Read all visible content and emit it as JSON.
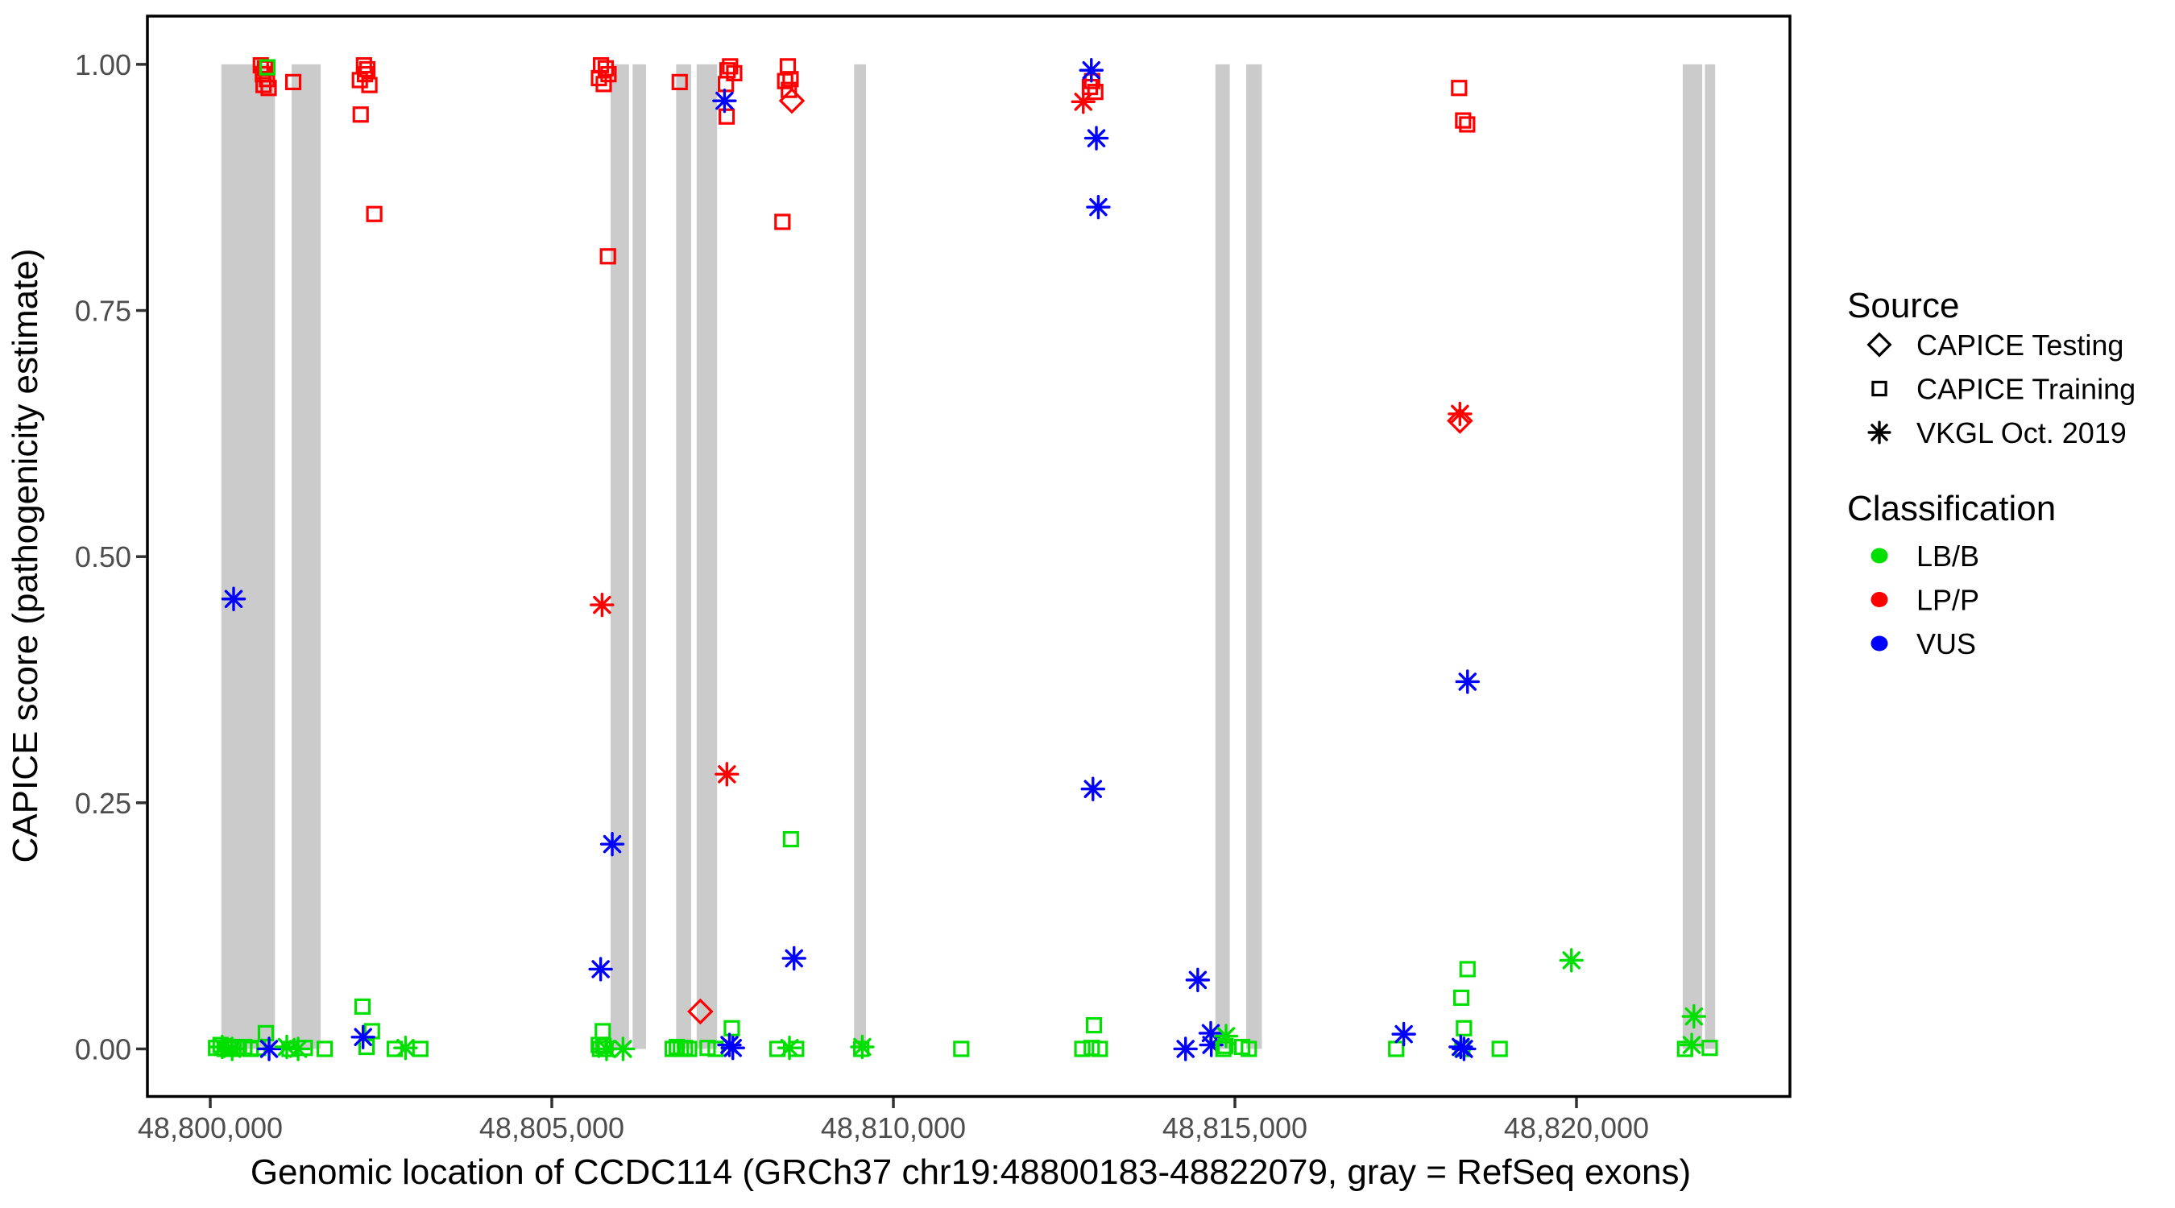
{
  "chart_data": {
    "type": "scatter",
    "xlabel": "Genomic location of CCDC114 (GRCh37 chr19:48800183-48822079, gray = RefSeq exons)",
    "ylabel": "CAPICE score (pathogenicity estimate)",
    "xlim": [
      48799080,
      48823125
    ],
    "ylim": [
      -0.0483,
      1.049
    ],
    "grid": "off",
    "x_ticks": [
      {
        "value": 48800000,
        "label": "48,800,000"
      },
      {
        "value": 48805000,
        "label": "48,805,000"
      },
      {
        "value": 48810000,
        "label": "48,810,000"
      },
      {
        "value": 48815000,
        "label": "48,815,000"
      },
      {
        "value": 48820000,
        "label": "48,820,000"
      }
    ],
    "y_ticks": [
      {
        "value": 0,
        "label": "0.00"
      },
      {
        "value": 0.25,
        "label": "0.25"
      },
      {
        "value": 0.5,
        "label": "0.50"
      },
      {
        "value": 0.75,
        "label": "0.75"
      },
      {
        "value": 1,
        "label": "1.00"
      }
    ],
    "exon_color": "#CBCBCB",
    "exons": [
      [
        48800162,
        48800947
      ],
      [
        48801191,
        48801616
      ],
      [
        48805860,
        48806130
      ],
      [
        48806183,
        48806380
      ],
      [
        48806820,
        48807040
      ],
      [
        48807120,
        48807420
      ],
      [
        48809425,
        48809600
      ],
      [
        48814715,
        48814925
      ],
      [
        48815165,
        48815395
      ],
      [
        48821555,
        48821842
      ],
      [
        48821880,
        48822030
      ]
    ],
    "points_format": [
      "genomic_position",
      "capice_score",
      "source",
      "classification"
    ],
    "points": [
      [
        48800740,
        0.999,
        "training",
        "LP/P"
      ],
      [
        48800800,
        0.996,
        "training",
        "LP/P"
      ],
      [
        48800770,
        0.99,
        "training",
        "LP/P"
      ],
      [
        48800830,
        0.985,
        "training",
        "LP/P"
      ],
      [
        48800780,
        0.979,
        "training",
        "LP/P"
      ],
      [
        48800855,
        0.976,
        "training",
        "LP/P"
      ],
      [
        48800837,
        0.997,
        "training",
        "LB/B"
      ],
      [
        48801215,
        0.982,
        "training",
        "LP/P"
      ],
      [
        48800342,
        0.457,
        "vkgl",
        "VUS"
      ],
      [
        48800085,
        0.001,
        "training",
        "LB/B"
      ],
      [
        48800150,
        0.004,
        "training",
        "LB/B"
      ],
      [
        48800210,
        0.0,
        "training",
        "LB/B"
      ],
      [
        48800270,
        0.002,
        "training",
        "LB/B"
      ],
      [
        48800340,
        0.0,
        "training",
        "LB/B"
      ],
      [
        48800420,
        0.001,
        "training",
        "LB/B"
      ],
      [
        48800175,
        0.002,
        "vkgl",
        "LB/B"
      ],
      [
        48800320,
        0.0,
        "vkgl",
        "LB/B"
      ],
      [
        48800500,
        0.002,
        "training",
        "LB/B"
      ],
      [
        48800590,
        0.0,
        "training",
        "LB/B"
      ],
      [
        48800700,
        0.001,
        "training",
        "LB/B"
      ],
      [
        48800813,
        0.016,
        "training",
        "LB/B"
      ],
      [
        48800861,
        0.0,
        "vkgl",
        "VUS"
      ],
      [
        48801160,
        0.0,
        "training",
        "LB/B"
      ],
      [
        48801120,
        0.002,
        "vkgl",
        "LB/B"
      ],
      [
        48801286,
        0.0,
        "vkgl",
        "LB/B"
      ],
      [
        48801384,
        0.001,
        "training",
        "LB/B"
      ],
      [
        48801675,
        0.0,
        "training",
        "LB/B"
      ],
      [
        48802229,
        0.043,
        "training",
        "LB/B"
      ],
      [
        48802288,
        0.002,
        "training",
        "LB/B"
      ],
      [
        48802367,
        0.018,
        "training",
        "LB/B"
      ],
      [
        48802237,
        0.012,
        "vkgl",
        "VUS"
      ],
      [
        48802701,
        0.0,
        "training",
        "LB/B"
      ],
      [
        48802858,
        0.001,
        "vkgl",
        "LB/B"
      ],
      [
        48803075,
        0.0,
        "training",
        "LB/B"
      ],
      [
        48802250,
        0.999,
        "training",
        "LP/P"
      ],
      [
        48802300,
        0.995,
        "training",
        "LP/P"
      ],
      [
        48802265,
        0.99,
        "training",
        "LP/P"
      ],
      [
        48802190,
        0.984,
        "training",
        "LP/P"
      ],
      [
        48802330,
        0.979,
        "training",
        "LP/P"
      ],
      [
        48802202,
        0.949,
        "training",
        "LP/P"
      ],
      [
        48802401,
        0.848,
        "training",
        "LP/P"
      ],
      [
        48805720,
        0.999,
        "training",
        "LP/P"
      ],
      [
        48805790,
        0.996,
        "training",
        "LP/P"
      ],
      [
        48805830,
        0.99,
        "training",
        "LP/P"
      ],
      [
        48805690,
        0.986,
        "training",
        "LP/P"
      ],
      [
        48805760,
        0.98,
        "training",
        "LP/P"
      ],
      [
        48805822,
        0.805,
        "training",
        "LP/P"
      ],
      [
        48805735,
        0.451,
        "vkgl",
        "LP/P"
      ],
      [
        48805885,
        0.208,
        "vkgl",
        "VUS"
      ],
      [
        48805715,
        0.081,
        "vkgl",
        "VUS"
      ],
      [
        48805746,
        0.018,
        "training",
        "LB/B"
      ],
      [
        48805687,
        0.004,
        "training",
        "LB/B"
      ],
      [
        48805786,
        0.0,
        "training",
        "LB/B"
      ],
      [
        48805705,
        0.0,
        "training",
        "LB/B"
      ],
      [
        48805756,
        0.003,
        "training",
        "LB/B"
      ],
      [
        48805801,
        0.0,
        "vkgl",
        "LB/B"
      ],
      [
        48806042,
        0.0,
        "vkgl",
        "LB/B"
      ],
      [
        48806872,
        0.982,
        "training",
        "LP/P"
      ],
      [
        48807572,
        0.994,
        "training",
        "LP/P"
      ],
      [
        48807670,
        0.991,
        "training",
        "LP/P"
      ],
      [
        48807610,
        0.998,
        "training",
        "LP/P"
      ],
      [
        48807548,
        0.98,
        "training",
        "LP/P"
      ],
      [
        48807560,
        0.947,
        "training",
        "LP/P"
      ],
      [
        48807528,
        0.963,
        "vkgl",
        "VUS"
      ],
      [
        48807174,
        0.038,
        "testing",
        "LP/P"
      ],
      [
        48807563,
        0.279,
        "vkgl",
        "LP/P"
      ],
      [
        48806770,
        0.0,
        "training",
        "LB/B"
      ],
      [
        48806830,
        0.002,
        "training",
        "LB/B"
      ],
      [
        48806890,
        0.0,
        "training",
        "LB/B"
      ],
      [
        48806950,
        0.001,
        "training",
        "LB/B"
      ],
      [
        48807010,
        0.0,
        "training",
        "LB/B"
      ],
      [
        48807281,
        0.001,
        "training",
        "LB/B"
      ],
      [
        48807398,
        0.0,
        "training",
        "LB/B"
      ],
      [
        48807635,
        0.021,
        "training",
        "LB/B"
      ],
      [
        48807600,
        0.004,
        "vkgl",
        "VUS"
      ],
      [
        48807650,
        0.001,
        "vkgl",
        "VUS"
      ],
      [
        48808455,
        0.998,
        "training",
        "LP/P"
      ],
      [
        48808495,
        0.985,
        "training",
        "LP/P"
      ],
      [
        48808416,
        0.983,
        "training",
        "LP/P"
      ],
      [
        48808470,
        0.974,
        "training",
        "LP/P"
      ],
      [
        48808514,
        0.963,
        "testing",
        "LP/P"
      ],
      [
        48808376,
        0.84,
        "training",
        "LP/P"
      ],
      [
        48808500,
        0.213,
        "training",
        "LB/B"
      ],
      [
        48808546,
        0.092,
        "vkgl",
        "VUS"
      ],
      [
        48808303,
        0.0,
        "training",
        "LB/B"
      ],
      [
        48808479,
        0.001,
        "vkgl",
        "LB/B"
      ],
      [
        48808577,
        0.0,
        "training",
        "LB/B"
      ],
      [
        48809530,
        0.0,
        "training",
        "LB/B"
      ],
      [
        48809545,
        0.002,
        "vkgl",
        "LB/B"
      ],
      [
        48810994,
        0.0,
        "training",
        "LB/B"
      ],
      [
        48812877,
        0.977,
        "training",
        "LP/P"
      ],
      [
        48812956,
        0.972,
        "training",
        "LP/P"
      ],
      [
        48812910,
        0.983,
        "training",
        "LP/P"
      ],
      [
        48812780,
        0.962,
        "vkgl",
        "LP/P"
      ],
      [
        48812898,
        0.994,
        "vkgl",
        "VUS"
      ],
      [
        48812972,
        0.925,
        "vkgl",
        "VUS"
      ],
      [
        48813000,
        0.855,
        "vkgl",
        "VUS"
      ],
      [
        48812922,
        0.264,
        "vkgl",
        "VUS"
      ],
      [
        48812766,
        0.0,
        "training",
        "LB/B"
      ],
      [
        48812904,
        0.001,
        "training",
        "LB/B"
      ],
      [
        48813022,
        0.0,
        "training",
        "LB/B"
      ],
      [
        48812936,
        0.024,
        "training",
        "LB/B"
      ],
      [
        48814277,
        0.0,
        "vkgl",
        "VUS"
      ],
      [
        48814456,
        0.07,
        "vkgl",
        "VUS"
      ],
      [
        48814646,
        0.016,
        "vkgl",
        "VUS"
      ],
      [
        48814654,
        0.004,
        "vkgl",
        "VUS"
      ],
      [
        48814870,
        0.013,
        "vkgl",
        "LB/B"
      ],
      [
        48814831,
        0.0,
        "training",
        "LB/B"
      ],
      [
        48814860,
        0.003,
        "training",
        "LB/B"
      ],
      [
        48815106,
        0.002,
        "training",
        "LB/B"
      ],
      [
        48815204,
        0.0,
        "training",
        "LB/B"
      ],
      [
        48817361,
        0.0,
        "training",
        "LB/B"
      ],
      [
        48817472,
        0.015,
        "vkgl",
        "VUS"
      ],
      [
        48818282,
        0.976,
        "training",
        "LP/P"
      ],
      [
        48818341,
        0.943,
        "training",
        "LP/P"
      ],
      [
        48818400,
        0.939,
        "training",
        "LP/P"
      ],
      [
        48818294,
        0.638,
        "testing",
        "LP/P"
      ],
      [
        48818294,
        0.645,
        "vkgl",
        "LP/P"
      ],
      [
        48818405,
        0.373,
        "vkgl",
        "VUS"
      ],
      [
        48818405,
        0.081,
        "training",
        "LB/B"
      ],
      [
        48818314,
        0.052,
        "training",
        "LB/B"
      ],
      [
        48818353,
        0.021,
        "training",
        "LB/B"
      ],
      [
        48818330,
        0.0,
        "training",
        "LB/B"
      ],
      [
        48818306,
        0.002,
        "vkgl",
        "VUS"
      ],
      [
        48818353,
        0.0,
        "vkgl",
        "VUS"
      ],
      [
        48818876,
        0.0,
        "training",
        "LB/B"
      ],
      [
        48819926,
        0.09,
        "vkgl",
        "LB/B"
      ],
      [
        48821589,
        0.0,
        "training",
        "LB/B"
      ],
      [
        48821687,
        0.004,
        "vkgl",
        "LB/B"
      ],
      [
        48821719,
        0.033,
        "vkgl",
        "LB/B"
      ],
      [
        48821951,
        0.001,
        "training",
        "LB/B"
      ]
    ]
  },
  "legend": {
    "source": {
      "title": "Source",
      "items": [
        {
          "label": "CAPICE Testing",
          "shape": "diamond"
        },
        {
          "label": "CAPICE Training",
          "shape": "square"
        },
        {
          "label": "VKGL Oct. 2019",
          "shape": "asterisk"
        }
      ]
    },
    "classification": {
      "title": "Classification",
      "items": [
        {
          "label": "LB/B",
          "color": "#00E000"
        },
        {
          "label": "LP/P",
          "color": "#FF0000"
        },
        {
          "label": "VUS",
          "color": "#0000FF"
        }
      ]
    }
  }
}
